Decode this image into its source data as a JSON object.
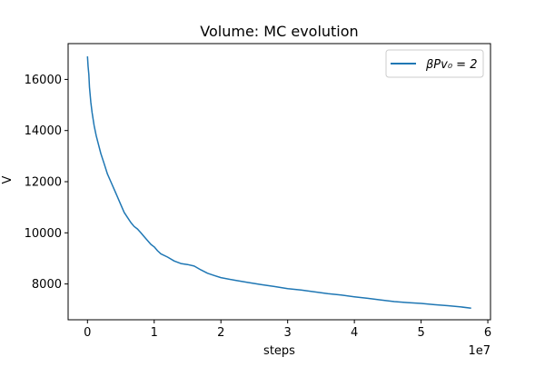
{
  "chart_data": {
    "type": "line",
    "title": "Volume: MC evolution",
    "xlabel": "steps",
    "ylabel": "V",
    "x_offset_label": "1e7",
    "xlim": [
      -0.29,
      6.04
    ],
    "ylim": [
      6600,
      17400
    ],
    "x_ticks": [
      0,
      1,
      2,
      3,
      4,
      5,
      6
    ],
    "x_tick_labels": [
      "0",
      "1",
      "2",
      "3",
      "4",
      "5",
      "6"
    ],
    "y_ticks": [
      8000,
      10000,
      12000,
      14000,
      16000
    ],
    "y_tick_labels": [
      "8000",
      "10000",
      "12000",
      "14000",
      "16000"
    ],
    "grid": false,
    "legend_position": "top-right",
    "series": [
      {
        "name": "βPv₀ = 2",
        "color": "#1f77b4",
        "x": [
          0,
          0.01,
          0.02,
          0.03,
          0.05,
          0.07,
          0.1,
          0.13,
          0.16,
          0.2,
          0.25,
          0.3,
          0.35,
          0.4,
          0.45,
          0.5,
          0.55,
          0.6,
          0.65,
          0.7,
          0.75,
          0.8,
          0.85,
          0.9,
          0.95,
          1.0,
          1.05,
          1.1,
          1.2,
          1.3,
          1.4,
          1.5,
          1.6,
          1.7,
          1.8,
          1.9,
          2.0,
          2.2,
          2.4,
          2.6,
          2.8,
          3.0,
          3.2,
          3.4,
          3.6,
          3.8,
          4.0,
          4.2,
          4.4,
          4.6,
          4.8,
          5.0,
          5.2,
          5.4,
          5.6,
          5.75
        ],
        "y": [
          16900,
          16500,
          16200,
          15700,
          15100,
          14700,
          14200,
          13800,
          13500,
          13100,
          12700,
          12300,
          12000,
          11700,
          11400,
          11100,
          10800,
          10600,
          10400,
          10250,
          10150,
          10000,
          9850,
          9700,
          9550,
          9450,
          9300,
          9180,
          9050,
          8900,
          8800,
          8760,
          8700,
          8550,
          8420,
          8330,
          8250,
          8150,
          8060,
          7980,
          7900,
          7820,
          7760,
          7690,
          7620,
          7570,
          7500,
          7440,
          7370,
          7310,
          7270,
          7240,
          7190,
          7150,
          7100,
          7050
        ]
      }
    ]
  }
}
